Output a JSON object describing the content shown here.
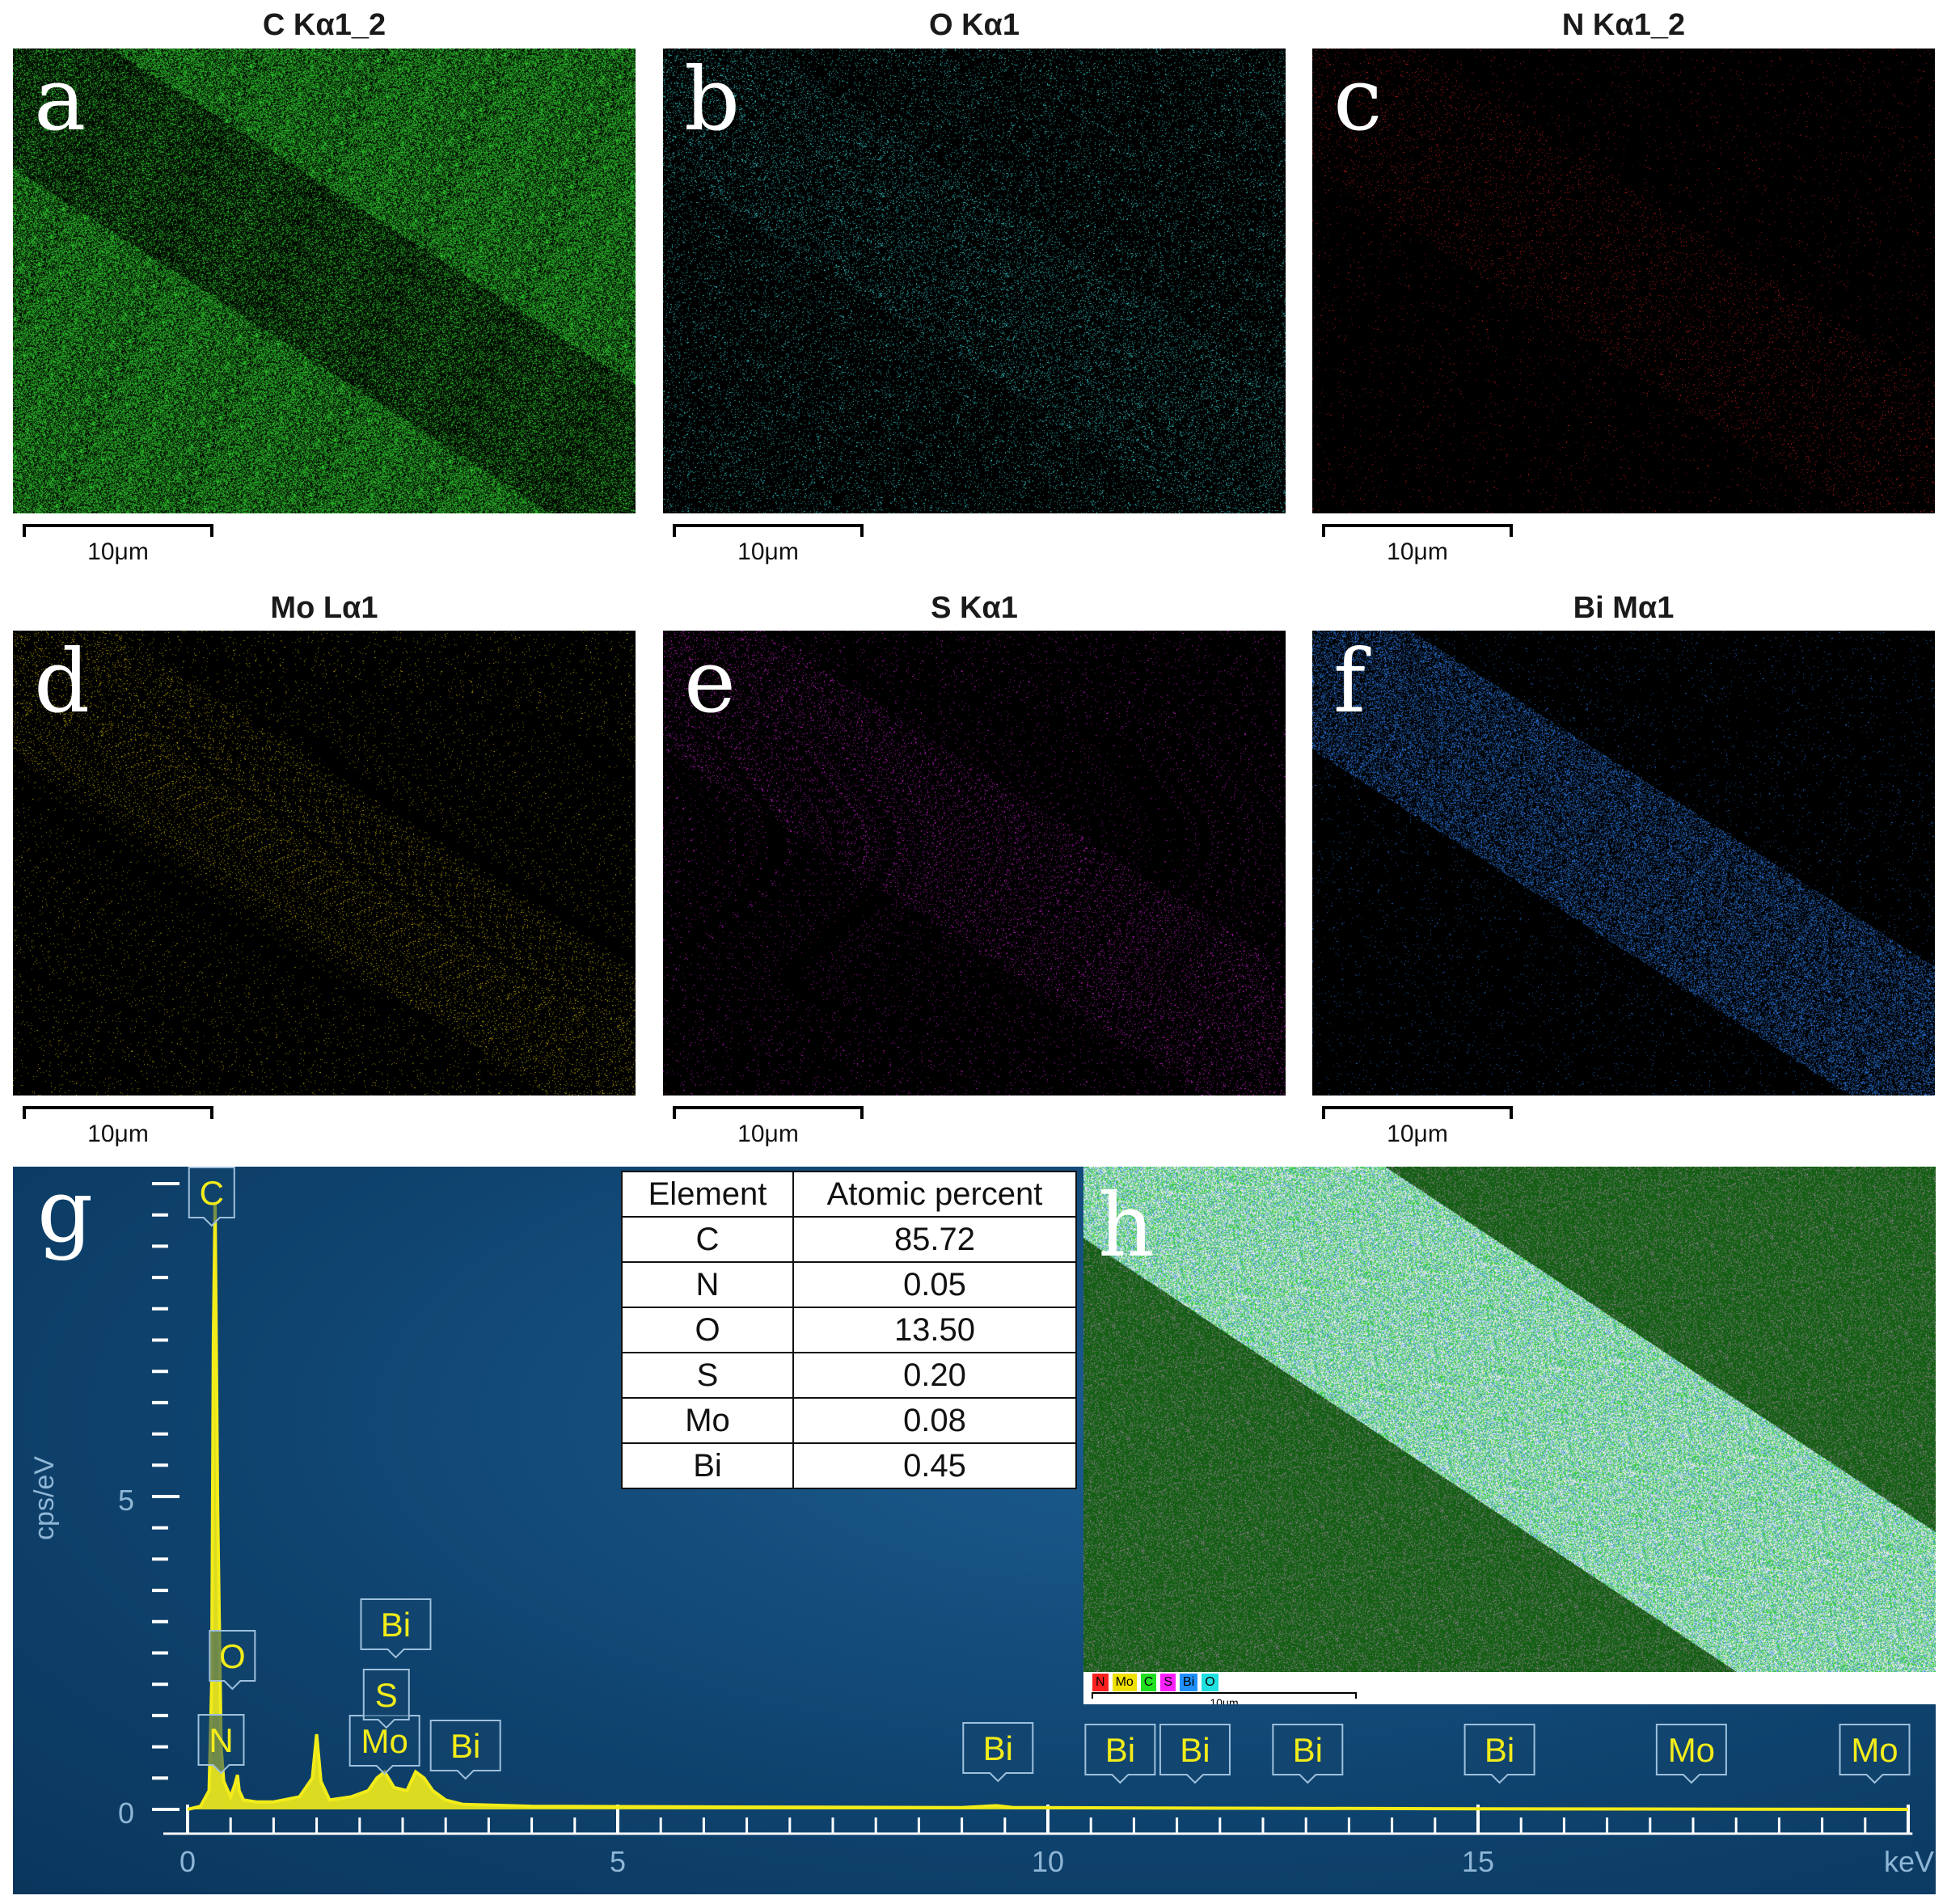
{
  "maps": [
    {
      "letter": "a",
      "title": "C Kα1_2",
      "scale": "10μm",
      "color": "#2ec82e"
    },
    {
      "letter": "b",
      "title": "O Kα1",
      "scale": "10μm",
      "color": "#33c9c9"
    },
    {
      "letter": "c",
      "title": "N Kα1_2",
      "scale": "10μm",
      "color": "#d42020"
    },
    {
      "letter": "d",
      "title": "Mo Lα1",
      "scale": "10μm",
      "color": "#c8b400"
    },
    {
      "letter": "e",
      "title": "S Kα1",
      "scale": "10μm",
      "color": "#d020d0"
    },
    {
      "letter": "f",
      "title": "Bi Mα1",
      "scale": "10μm",
      "color": "#2a78e0"
    }
  ],
  "spectrum": {
    "letter": "g",
    "ylabel": "cps/eV",
    "xunit": "keV",
    "xticks": [
      "0",
      "5",
      "10",
      "15"
    ],
    "yticks": [
      "0",
      "5"
    ],
    "line_color": "#f2ec1a"
  },
  "chart_data": {
    "type": "line",
    "xlabel": "keV",
    "ylabel": "cps/eV",
    "xlim": [
      0,
      20
    ],
    "ylim": [
      0,
      10
    ],
    "x": [
      0.0,
      0.15,
      0.25,
      0.28,
      0.3,
      0.32,
      0.35,
      0.39,
      0.42,
      0.5,
      0.55,
      0.58,
      0.6,
      0.65,
      0.8,
      1.0,
      1.3,
      1.45,
      1.5,
      1.55,
      1.65,
      1.9,
      2.1,
      2.2,
      2.29,
      2.4,
      2.55,
      2.65,
      2.75,
      2.85,
      3.0,
      3.2,
      4.0,
      6.0,
      9.0,
      9.4,
      9.6,
      12.0,
      15.0,
      20.0
    ],
    "y": [
      0.0,
      0.05,
      0.3,
      2.0,
      7.5,
      9.7,
      4.8,
      1.0,
      0.45,
      0.2,
      0.4,
      0.55,
      0.3,
      0.15,
      0.12,
      0.12,
      0.2,
      0.5,
      1.2,
      0.45,
      0.15,
      0.2,
      0.3,
      0.5,
      0.6,
      0.35,
      0.3,
      0.6,
      0.5,
      0.3,
      0.15,
      0.08,
      0.05,
      0.04,
      0.03,
      0.06,
      0.03,
      0.02,
      0.01,
      0.0
    ],
    "peak_labels": [
      {
        "label": "C",
        "x": 0.28
      },
      {
        "label": "N",
        "x": 0.39
      },
      {
        "label": "O",
        "x": 0.52
      },
      {
        "label": "Mo",
        "x": 2.29
      },
      {
        "label": "S",
        "x": 2.31
      },
      {
        "label": "Bi",
        "x": 2.42
      },
      {
        "label": "Bi",
        "x": 3.23
      },
      {
        "label": "Bi",
        "x": 9.42
      },
      {
        "label": "Bi",
        "x": 10.84
      },
      {
        "label": "Bi",
        "x": 11.71
      },
      {
        "label": "Bi",
        "x": 13.02
      },
      {
        "label": "Bi",
        "x": 15.25
      },
      {
        "label": "Mo",
        "x": 17.48
      },
      {
        "label": "Mo",
        "x": 19.61
      }
    ]
  },
  "composition_table": {
    "headers": [
      "Element",
      "Atomic percent"
    ],
    "rows": [
      [
        "C",
        "85.72"
      ],
      [
        "N",
        "0.05"
      ],
      [
        "O",
        "13.50"
      ],
      [
        "S",
        "0.20"
      ],
      [
        "Mo",
        "0.08"
      ],
      [
        "Bi",
        "0.45"
      ]
    ]
  },
  "overlay": {
    "letter": "h",
    "scale": "10μm",
    "legend": [
      {
        "label": "N",
        "color": "#ff2020"
      },
      {
        "label": "Mo",
        "color": "#f0e000"
      },
      {
        "label": "C",
        "color": "#20e020"
      },
      {
        "label": "S",
        "color": "#ff20ff"
      },
      {
        "label": "Bi",
        "color": "#2090ff"
      },
      {
        "label": "O",
        "color": "#20e0e0"
      }
    ]
  }
}
